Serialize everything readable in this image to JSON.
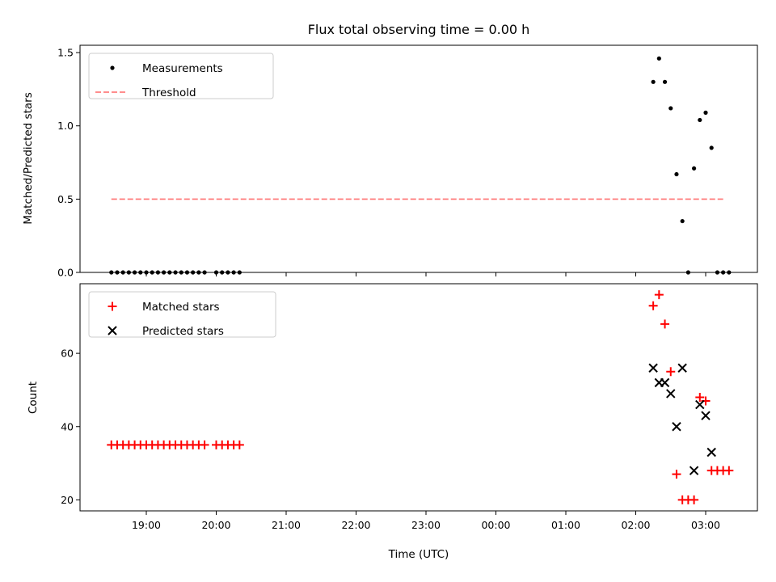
{
  "chart_data": {
    "title": "Flux total observing time = 0.00 h",
    "xlabel": "Time (UTC)",
    "x_ticks": [
      "19:00",
      "20:00",
      "21:00",
      "22:00",
      "23:00",
      "00:00",
      "01:00",
      "02:00",
      "03:00"
    ],
    "colors": {
      "measurements": "#000000",
      "threshold": "#ff7f7f",
      "matched": "#ff0000",
      "predicted": "#000000"
    },
    "panels": [
      {
        "type": "scatter",
        "ylabel": "Matched/Predicted stars",
        "ylim": [
          0,
          1.55
        ],
        "y_ticks": [
          "0.0",
          "0.5",
          "1.0",
          "1.5"
        ],
        "legend": {
          "placement": "upper-left",
          "entries": [
            "Measurements",
            "Threshold"
          ]
        },
        "series": [
          {
            "name": "Measurements",
            "marker": "dot",
            "points": [
              [
                "18:30",
                0
              ],
              [
                "18:35",
                0
              ],
              [
                "18:40",
                0
              ],
              [
                "18:45",
                0
              ],
              [
                "18:50",
                0
              ],
              [
                "18:55",
                0
              ],
              [
                "19:00",
                0
              ],
              [
                "19:05",
                0
              ],
              [
                "19:10",
                0
              ],
              [
                "19:15",
                0
              ],
              [
                "19:20",
                0
              ],
              [
                "19:25",
                0
              ],
              [
                "19:30",
                0
              ],
              [
                "19:35",
                0
              ],
              [
                "19:40",
                0
              ],
              [
                "19:45",
                0
              ],
              [
                "19:50",
                0
              ],
              [
                "20:00",
                0
              ],
              [
                "20:05",
                0
              ],
              [
                "20:10",
                0
              ],
              [
                "20:15",
                0
              ],
              [
                "20:20",
                0
              ],
              [
                "02:15",
                1.3
              ],
              [
                "02:20",
                1.46
              ],
              [
                "02:25",
                1.3
              ],
              [
                "02:30",
                1.12
              ],
              [
                "02:35",
                0.67
              ],
              [
                "02:40",
                0.35
              ],
              [
                "02:45",
                0
              ],
              [
                "02:50",
                0.71
              ],
              [
                "02:55",
                1.04
              ],
              [
                "03:00",
                1.09
              ],
              [
                "03:05",
                0.85
              ],
              [
                "03:10",
                0
              ],
              [
                "03:15",
                0
              ],
              [
                "03:20",
                0
              ]
            ]
          },
          {
            "name": "Threshold",
            "marker": "dashed-line",
            "value": 0.5,
            "x_range": [
              "18:30",
              "03:15"
            ]
          }
        ]
      },
      {
        "type": "scatter",
        "ylabel": "Count",
        "ylim": [
          17,
          79
        ],
        "y_ticks": [
          "20",
          "40",
          "60"
        ],
        "legend": {
          "placement": "upper-left",
          "entries": [
            "Matched stars",
            "Predicted stars"
          ]
        },
        "series": [
          {
            "name": "Matched stars",
            "marker": "plus",
            "points": [
              [
                "18:30",
                35
              ],
              [
                "18:35",
                35
              ],
              [
                "18:40",
                35
              ],
              [
                "18:45",
                35
              ],
              [
                "18:50",
                35
              ],
              [
                "18:55",
                35
              ],
              [
                "19:00",
                35
              ],
              [
                "19:05",
                35
              ],
              [
                "19:10",
                35
              ],
              [
                "19:15",
                35
              ],
              [
                "19:20",
                35
              ],
              [
                "19:25",
                35
              ],
              [
                "19:30",
                35
              ],
              [
                "19:35",
                35
              ],
              [
                "19:40",
                35
              ],
              [
                "19:45",
                35
              ],
              [
                "19:50",
                35
              ],
              [
                "20:00",
                35
              ],
              [
                "20:05",
                35
              ],
              [
                "20:10",
                35
              ],
              [
                "20:15",
                35
              ],
              [
                "20:20",
                35
              ],
              [
                "02:15",
                73
              ],
              [
                "02:20",
                76
              ],
              [
                "02:25",
                68
              ],
              [
                "02:30",
                55
              ],
              [
                "02:35",
                27
              ],
              [
                "02:40",
                20
              ],
              [
                "02:45",
                20
              ],
              [
                "02:50",
                20
              ],
              [
                "02:55",
                48
              ],
              [
                "03:00",
                47
              ],
              [
                "03:05",
                28
              ],
              [
                "03:10",
                28
              ],
              [
                "03:15",
                28
              ],
              [
                "03:20",
                28
              ]
            ]
          },
          {
            "name": "Predicted stars",
            "marker": "x",
            "points": [
              [
                "02:15",
                56
              ],
              [
                "02:20",
                52
              ],
              [
                "02:25",
                52
              ],
              [
                "02:30",
                49
              ],
              [
                "02:35",
                40
              ],
              [
                "02:40",
                56
              ],
              [
                "02:50",
                28
              ],
              [
                "02:55",
                46
              ],
              [
                "03:00",
                43
              ],
              [
                "03:05",
                33
              ]
            ]
          }
        ]
      }
    ]
  }
}
